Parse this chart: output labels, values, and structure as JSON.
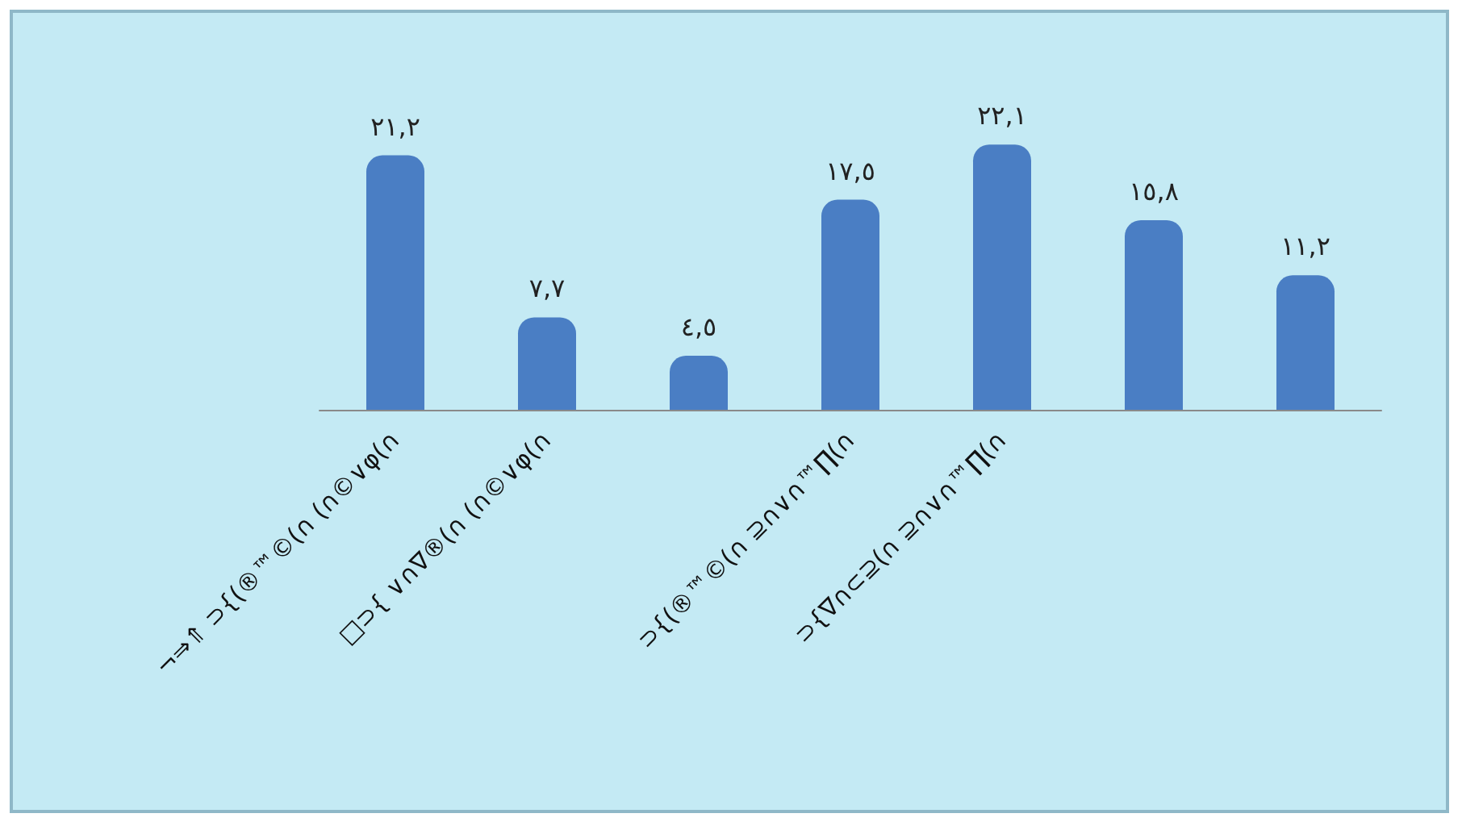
{
  "chart_data": {
    "type": "bar",
    "categories": [
      "¬⇒⇑ ⊃{(®™©(∩ (∩©∨φ(∩",
      "□⊃{ ∨∩∇®(∩ (∩©∨φ(∩",
      null,
      "⊃{(®™©(∩ ⊇∩∨∩™∏(∩",
      "⊃{∇∩⊂⊇(∩ ⊇∩∨∩™∏(∩",
      null,
      null
    ],
    "values": [
      21.2,
      7.7,
      4.5,
      17.5,
      22.1,
      15.8,
      11.2
    ],
    "value_labels": [
      "٢١,٢",
      "٧,٧",
      "٤,٥",
      "١٧,٥",
      "٢٢,١",
      "١٥,٨",
      "١١,٢"
    ],
    "color": "#4a7ec4"
  }
}
